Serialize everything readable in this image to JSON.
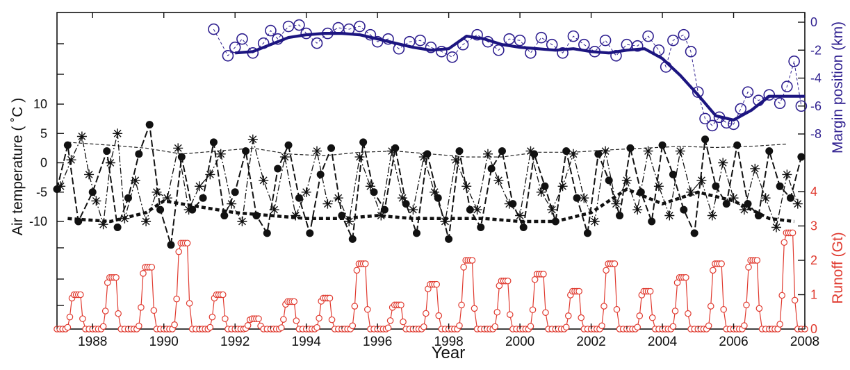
{
  "chart_data": {
    "type": "line",
    "xlabel": "Year",
    "x_ticks": [
      "1988",
      "1990",
      "1992",
      "1994",
      "1996",
      "1998",
      "2000",
      "2002",
      "2004",
      "2006",
      "2008"
    ],
    "xlim": [
      1987,
      2008
    ],
    "axes": {
      "margin": {
        "label": "Margin position (km)",
        "ticks": [
          "0",
          "-2",
          "-4",
          "-6",
          "-8"
        ],
        "range": [
          -8,
          0
        ],
        "color": "#2e1f8f"
      },
      "temperature": {
        "label": "Air temperature ( ˚C )",
        "ticks": [
          "10",
          "5",
          "0",
          "-5",
          "-10"
        ],
        "range": [
          -10,
          10
        ],
        "color": "#111111"
      },
      "runoff": {
        "label": "Runoff (Gt)",
        "ticks": [
          "4",
          "3",
          "2",
          "1",
          "0"
        ],
        "range": [
          0,
          4
        ],
        "color": "#e03a2f"
      }
    },
    "series": [
      {
        "id": "margin_obs",
        "axis": "margin",
        "style": "open-circles-dashed",
        "color": "#2e1f8f",
        "x": [
          1991.4,
          1991.8,
          1992.0,
          1992.2,
          1992.5,
          1992.8,
          1993.0,
          1993.2,
          1993.5,
          1993.8,
          1994.0,
          1994.3,
          1994.6,
          1994.9,
          1995.2,
          1995.5,
          1995.8,
          1996.0,
          1996.3,
          1996.6,
          1996.9,
          1997.2,
          1997.5,
          1997.8,
          1998.1,
          1998.4,
          1998.8,
          1999.1,
          1999.4,
          1999.7,
          2000.0,
          2000.3,
          2000.6,
          2000.9,
          2001.2,
          2001.5,
          2001.8,
          2002.1,
          2002.4,
          2002.7,
          2003.0,
          2003.3,
          2003.6,
          2003.9,
          2004.1,
          2004.3,
          2004.6,
          2004.8,
          2005.0,
          2005.2,
          2005.4,
          2005.6,
          2005.8,
          2006.0,
          2006.2,
          2006.4,
          2006.7,
          2007.0,
          2007.3,
          2007.5,
          2007.7,
          2007.9
        ],
        "y": [
          -0.5,
          -2.4,
          -1.8,
          -1.2,
          -2.2,
          -1.5,
          -0.6,
          -1.2,
          -0.3,
          -0.2,
          -0.8,
          -1.5,
          -0.8,
          -0.4,
          -0.5,
          -0.3,
          -0.9,
          -1.4,
          -1.2,
          -1.9,
          -1.4,
          -1.3,
          -1.8,
          -2.1,
          -2.5,
          -1.6,
          -0.9,
          -1.4,
          -2.0,
          -1.2,
          -1.3,
          -2.2,
          -1.1,
          -1.6,
          -2.2,
          -1.0,
          -1.6,
          -2.1,
          -1.3,
          -2.4,
          -1.6,
          -1.7,
          -1.0,
          -2.0,
          -3.2,
          -1.3,
          -0.9,
          -2.1,
          -5.0,
          -6.9,
          -7.4,
          -6.8,
          -7.2,
          -7.3,
          -6.2,
          -5.0,
          -5.6,
          -5.2,
          -5.8,
          -4.6,
          -2.8,
          -6.0
        ]
      },
      {
        "id": "margin_smooth",
        "axis": "margin",
        "style": "thick-line",
        "color": "#1c1580",
        "x": [
          1992.0,
          1992.5,
          1993.0,
          1993.5,
          1994.0,
          1994.5,
          1995.0,
          1995.5,
          1996.0,
          1996.5,
          1997.0,
          1997.5,
          1998.0,
          1998.5,
          1999.0,
          1999.5,
          2000.0,
          2000.5,
          2001.0,
          2001.5,
          2002.0,
          2002.5,
          2003.0,
          2003.5,
          2004.0,
          2004.5,
          2005.0,
          2005.5,
          2006.0,
          2006.5,
          2007.0,
          2007.5,
          2008.0
        ],
        "y": [
          -2.2,
          -2.1,
          -1.6,
          -1.1,
          -0.9,
          -0.8,
          -0.8,
          -0.9,
          -1.2,
          -1.5,
          -1.8,
          -2.0,
          -1.9,
          -1.0,
          -1.2,
          -1.6,
          -1.8,
          -1.9,
          -2.0,
          -1.9,
          -2.1,
          -2.2,
          -2.0,
          -1.9,
          -2.6,
          -3.8,
          -5.2,
          -6.7,
          -7.0,
          -6.3,
          -5.3,
          -5.3,
          -5.3
        ]
      },
      {
        "id": "temp_stars",
        "axis": "temperature",
        "style": "stars-dashdot",
        "color": "#111111",
        "x": [
          1987.1,
          1987.4,
          1987.7,
          1987.9,
          1988.1,
          1988.3,
          1988.5,
          1988.7,
          1988.9,
          1989.2,
          1989.5,
          1989.8,
          1990.1,
          1990.4,
          1990.7,
          1991.0,
          1991.3,
          1991.6,
          1991.9,
          1992.2,
          1992.5,
          1992.8,
          1993.1,
          1993.4,
          1993.7,
          1994.0,
          1994.3,
          1994.6,
          1994.9,
          1995.2,
          1995.5,
          1995.8,
          1996.1,
          1996.4,
          1996.7,
          1997.0,
          1997.3,
          1997.6,
          1997.9,
          1998.2,
          1998.5,
          1998.8,
          1999.1,
          1999.4,
          1999.7,
          2000.0,
          2000.3,
          2000.6,
          2000.9,
          2001.2,
          2001.5,
          2001.8,
          2002.1,
          2002.4,
          2002.7,
          2003.0,
          2003.3,
          2003.6,
          2003.9,
          2004.2,
          2004.5,
          2004.8,
          2005.1,
          2005.4,
          2005.7,
          2006.0,
          2006.3,
          2006.6,
          2006.9,
          2007.2,
          2007.5,
          2007.8
        ],
        "y": [
          -4,
          0.5,
          4.5,
          -2,
          -6.5,
          -10.5,
          0.0,
          5.0,
          -9.5,
          -3,
          -10,
          -5,
          -6,
          2.5,
          -8,
          -4,
          -2,
          1.5,
          -7,
          -10,
          4,
          -3,
          -8,
          1,
          -9,
          -5,
          2,
          -7,
          -6,
          -10,
          1,
          -4,
          -9,
          2,
          -6,
          -8,
          1,
          -5,
          -10,
          0.5,
          -4,
          -8,
          1.5,
          -3,
          -7,
          -9,
          2,
          -5,
          -8,
          -4,
          1.5,
          -6,
          -10,
          2,
          -7,
          -3,
          -8,
          2,
          -4,
          -9,
          2,
          -5,
          -3,
          -9,
          0,
          -6,
          -8,
          -1,
          -6,
          -11,
          -2,
          -7
        ]
      },
      {
        "id": "temp_dots",
        "axis": "temperature",
        "style": "filled-dots-dashed",
        "color": "#111111",
        "x": [
          1987.0,
          1987.3,
          1987.6,
          1988.0,
          1988.4,
          1988.7,
          1989.0,
          1989.3,
          1989.6,
          1989.9,
          1990.2,
          1990.5,
          1990.8,
          1991.1,
          1991.4,
          1991.7,
          1992.0,
          1992.3,
          1992.6,
          1992.9,
          1993.2,
          1993.5,
          1993.8,
          1994.1,
          1994.4,
          1994.7,
          1995.0,
          1995.3,
          1995.6,
          1995.9,
          1996.2,
          1996.5,
          1996.8,
          1997.1,
          1997.4,
          1997.7,
          1998.0,
          1998.3,
          1998.6,
          1998.9,
          1999.2,
          1999.5,
          1999.8,
          2000.1,
          2000.4,
          2000.7,
          2001.0,
          2001.3,
          2001.6,
          2001.9,
          2002.2,
          2002.5,
          2002.8,
          2003.1,
          2003.4,
          2003.7,
          2004.0,
          2004.3,
          2004.6,
          2004.9,
          2005.2,
          2005.5,
          2005.8,
          2006.1,
          2006.4,
          2006.7,
          2007.0,
          2007.3,
          2007.6,
          2007.9
        ],
        "y": [
          -4.5,
          3,
          -10,
          -5,
          2,
          -11,
          -6,
          1.5,
          6.5,
          -8,
          -14,
          1,
          -8,
          -6,
          3.5,
          -9,
          -5,
          2,
          -9,
          -12,
          -1,
          3,
          -6,
          -12,
          -2,
          2.5,
          -9,
          -13,
          3.5,
          -5,
          -8,
          2.5,
          -7,
          -12,
          1.5,
          -6,
          -13,
          2,
          -8,
          -11,
          -1,
          2,
          -7,
          -11,
          1.5,
          -4,
          -10,
          2,
          -6,
          -12,
          1.5,
          -3,
          -9,
          2.5,
          -5,
          -10,
          3,
          -2,
          -8,
          -12,
          4,
          -4,
          -7,
          3,
          -7,
          -9,
          2,
          -4,
          -6,
          1
        ]
      },
      {
        "id": "temp_max_mean",
        "axis": "temperature",
        "style": "thin-dashed",
        "color": "#111111",
        "x": [
          1987.3,
          1988.5,
          1989.5,
          1990.5,
          1991.5,
          1992.5,
          1993.5,
          1994.5,
          1995.5,
          1996.5,
          1997.5,
          1998.5,
          1999.5,
          2000.5,
          2001.5,
          2002.5,
          2003.5,
          2004.5,
          2005.5,
          2006.5,
          2007.5
        ],
        "y": [
          3.5,
          3.0,
          2.5,
          1.5,
          2.0,
          2.5,
          1.5,
          1.2,
          1.8,
          2.0,
          1.5,
          1.0,
          1.0,
          1.8,
          1.8,
          2.2,
          2.5,
          2.8,
          2.6,
          2.8,
          3.2
        ]
      },
      {
        "id": "temp_annual_mean",
        "axis": "temperature",
        "style": "thick-dotted",
        "color": "#111111",
        "x": [
          1987.3,
          1988.5,
          1989.5,
          1990.0,
          1991.0,
          1992.0,
          1993.0,
          1994.0,
          1995.0,
          1996.0,
          1997.0,
          1998.0,
          1999.0,
          2000.0,
          2001.0,
          2002.0,
          2003.0,
          2004.0,
          2005.0,
          2006.0,
          2007.0,
          2007.7
        ],
        "y": [
          -9.5,
          -10.0,
          -8.5,
          -6.5,
          -7.5,
          -8.5,
          -9.0,
          -9.5,
          -9.5,
          -9.0,
          -9.5,
          -9.5,
          -9.5,
          -10.0,
          -10.0,
          -8.5,
          -4.5,
          -7.0,
          -5.0,
          -6.5,
          -9.5,
          -10.0
        ]
      },
      {
        "id": "runoff",
        "axis": "runoff",
        "style": "open-circles-line",
        "color": "#e03a2f",
        "annual_peaks": [
          1.0,
          1.5,
          1.8,
          2.5,
          1.0,
          0.3,
          0.8,
          0.9,
          1.9,
          0.7,
          1.3,
          2.0,
          1.4,
          1.6,
          1.1,
          1.9,
          1.1,
          1.5,
          1.9,
          2.0,
          2.8
        ]
      }
    ]
  }
}
